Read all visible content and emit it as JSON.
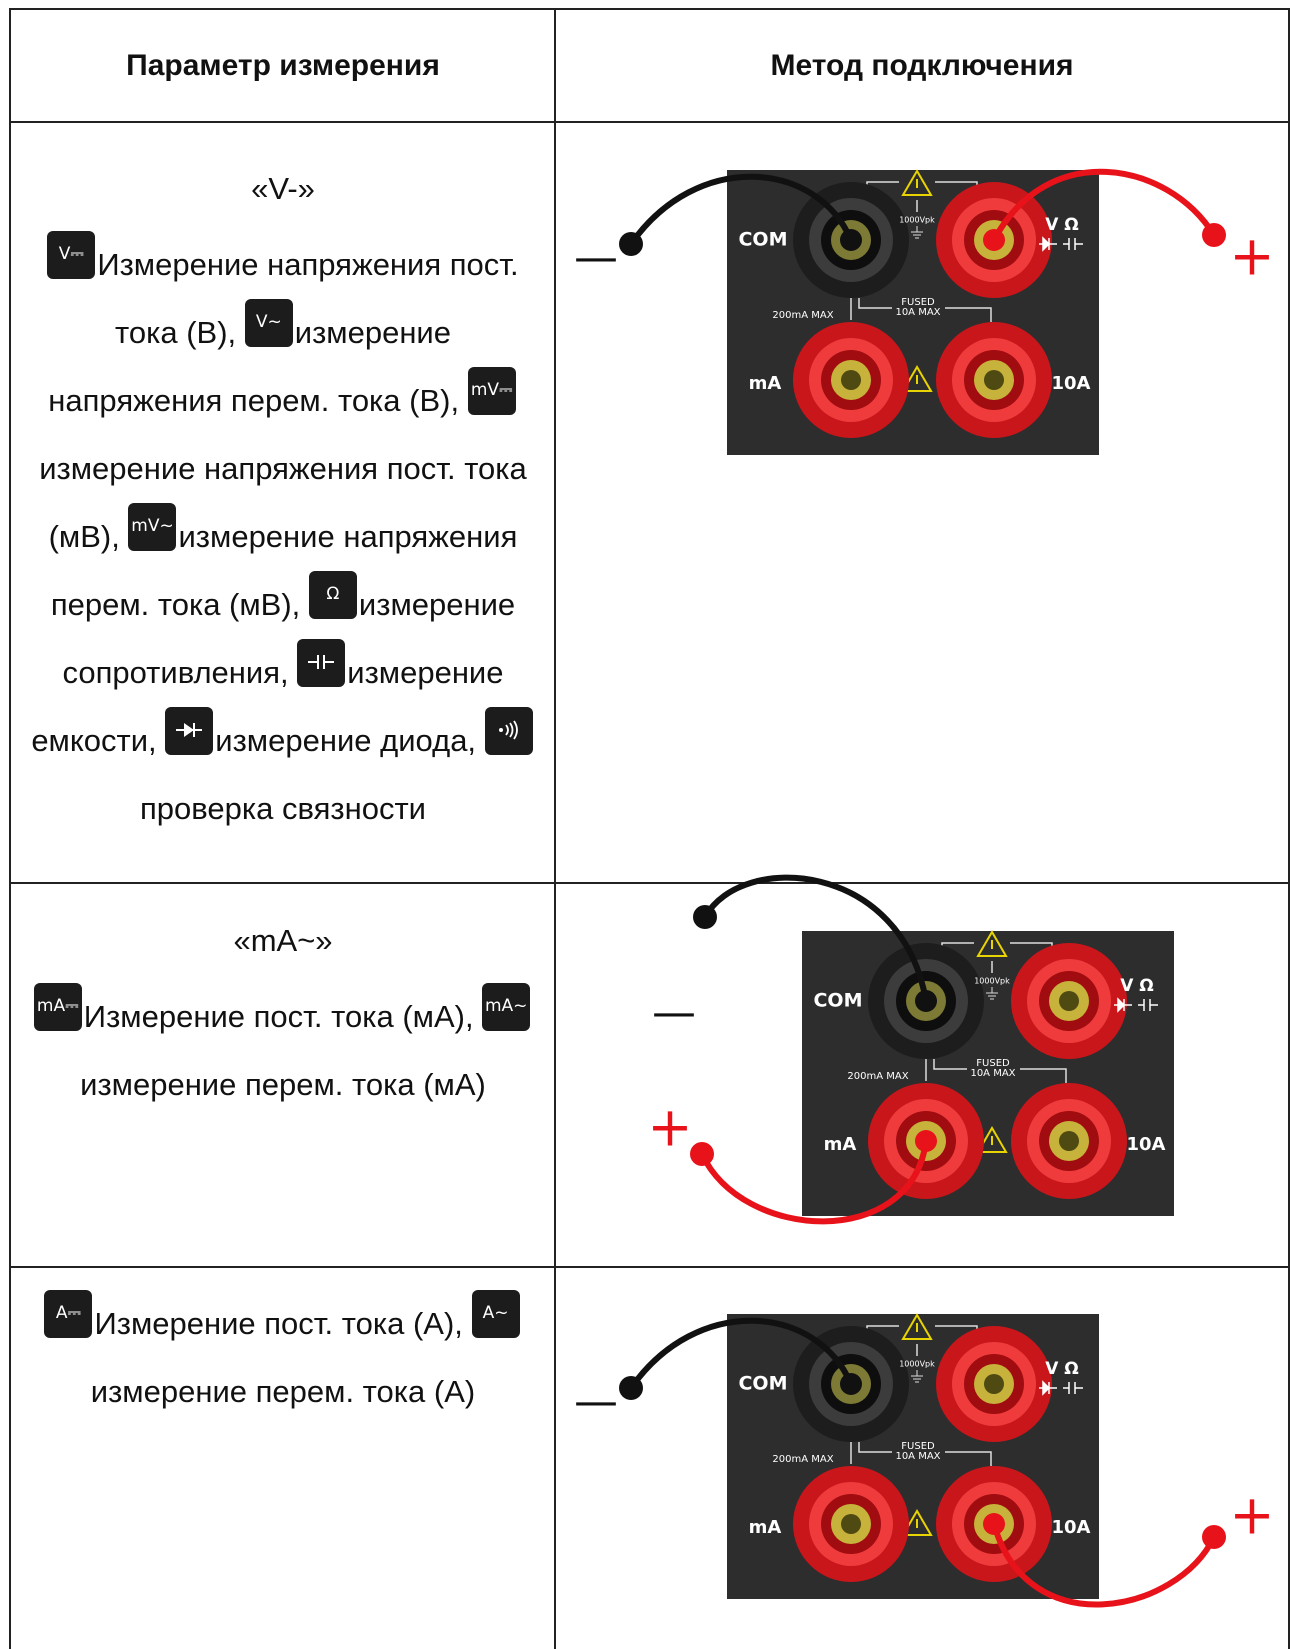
{
  "header": {
    "col1": "Параметр измерения",
    "col2": "Метод подключения"
  },
  "rows": [
    {
      "mode": "«V-»",
      "items": [
        {
          "icon": "V⎓",
          "text": "Измерение напряжения пост. тока (В),"
        },
        {
          "icon": "V~",
          "text": "измерение напряжения перем. тока (В),"
        },
        {
          "icon": "mV⎓",
          "text": "измерение напряжения пост. тока (мВ),"
        },
        {
          "icon": "mV~",
          "text": "измерение напряжения перем. тока (мВ),"
        },
        {
          "icon": "Ω",
          "text": "измерение сопротивления,"
        },
        {
          "text": "измерение емкости,"
        },
        {
          "text": "измерение диода,"
        },
        {
          "text": "проверка связности"
        }
      ],
      "minus": "—",
      "plus": "+"
    },
    {
      "mode": "«mA~»",
      "items": [
        {
          "icon": "mA⎓",
          "text": "Измерение пост. тока (мА),"
        },
        {
          "icon": "mA~",
          "text": "измерение перем. тока (мА)"
        }
      ],
      "minus": "—",
      "plus": "+"
    },
    {
      "items": [
        {
          "icon": "A⎓",
          "text": "Измерение пост. тока (А),"
        },
        {
          "icon": "A~",
          "text": "измерение перем. тока (А)"
        }
      ],
      "minus": "—",
      "plus": "+"
    }
  ],
  "panel": {
    "com": "COM",
    "v_ohm": "V Ω",
    "ma": "mA",
    "a10": "10A",
    "vpk": "1000Vpk",
    "ma_max": "200mA MAX",
    "fused": "FUSED",
    "fuse_rating": "10A MAX"
  }
}
